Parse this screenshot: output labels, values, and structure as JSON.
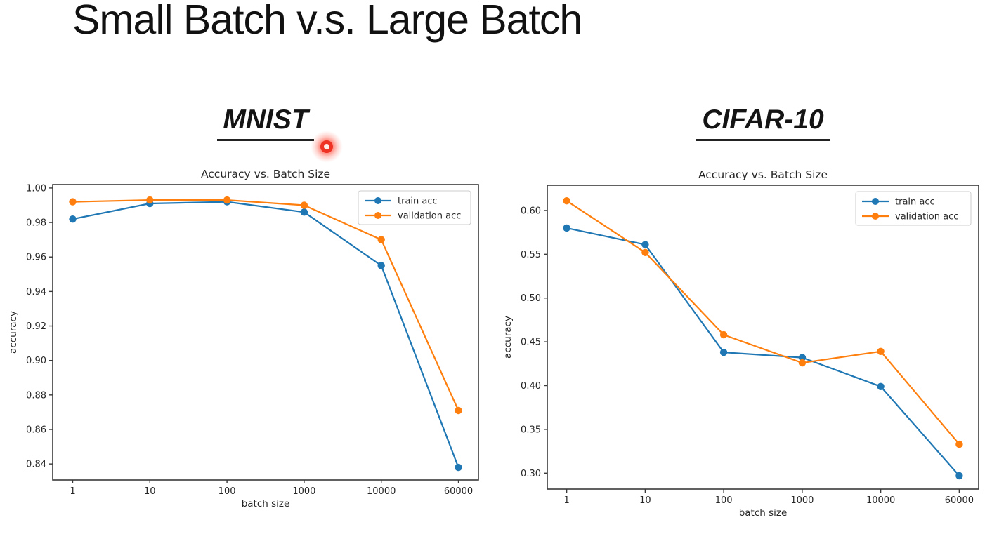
{
  "slide": {
    "title": "Small Batch v.s. Large Batch"
  },
  "panels": [
    {
      "heading": "MNIST"
    },
    {
      "heading": "CIFAR-10"
    }
  ],
  "laser_pointer": {
    "color": "#ee3224"
  },
  "colors": {
    "train": "#1f77b4",
    "validation": "#ff7f0e",
    "spine": "#3a3a3a",
    "text": "#262626"
  },
  "chart_data": [
    {
      "type": "line",
      "title": "Accuracy vs. Batch Size",
      "xlabel": "batch size",
      "ylabel": "accuracy",
      "x_scale": "log (ticks equally spaced)",
      "grid": false,
      "categories": [
        "1",
        "10",
        "100",
        "1000",
        "10000",
        "60000"
      ],
      "series": [
        {
          "name": "train acc",
          "color": "#1f77b4",
          "values": [
            0.982,
            0.991,
            0.992,
            0.986,
            0.955,
            0.838
          ]
        },
        {
          "name": "validation acc",
          "color": "#ff7f0e",
          "values": [
            0.992,
            0.993,
            0.993,
            0.99,
            0.97,
            0.871
          ]
        }
      ],
      "ylim": [
        0.8307,
        1.002
      ],
      "yticks": [
        0.84,
        0.86,
        0.88,
        0.9,
        0.92,
        0.94,
        0.96,
        0.98,
        1.0
      ],
      "legend": [
        "train acc",
        "validation acc"
      ],
      "legend_position": "upper right"
    },
    {
      "type": "line",
      "title": "Accuracy vs. Batch Size",
      "xlabel": "batch size",
      "ylabel": "accuracy",
      "x_scale": "log (ticks equally spaced)",
      "grid": false,
      "categories": [
        "1",
        "10",
        "100",
        "1000",
        "10000",
        "60000"
      ],
      "series": [
        {
          "name": "train acc",
          "color": "#1f77b4",
          "values": [
            0.58,
            0.561,
            0.438,
            0.432,
            0.399,
            0.297
          ]
        },
        {
          "name": "validation acc",
          "color": "#ff7f0e",
          "values": [
            0.611,
            0.552,
            0.458,
            0.426,
            0.439,
            0.333
          ]
        }
      ],
      "ylim": [
        0.2818,
        0.6288
      ],
      "yticks": [
        0.3,
        0.35,
        0.4,
        0.45,
        0.5,
        0.55,
        0.6
      ],
      "legend": [
        "train acc",
        "validation acc"
      ],
      "legend_position": "upper right"
    }
  ]
}
